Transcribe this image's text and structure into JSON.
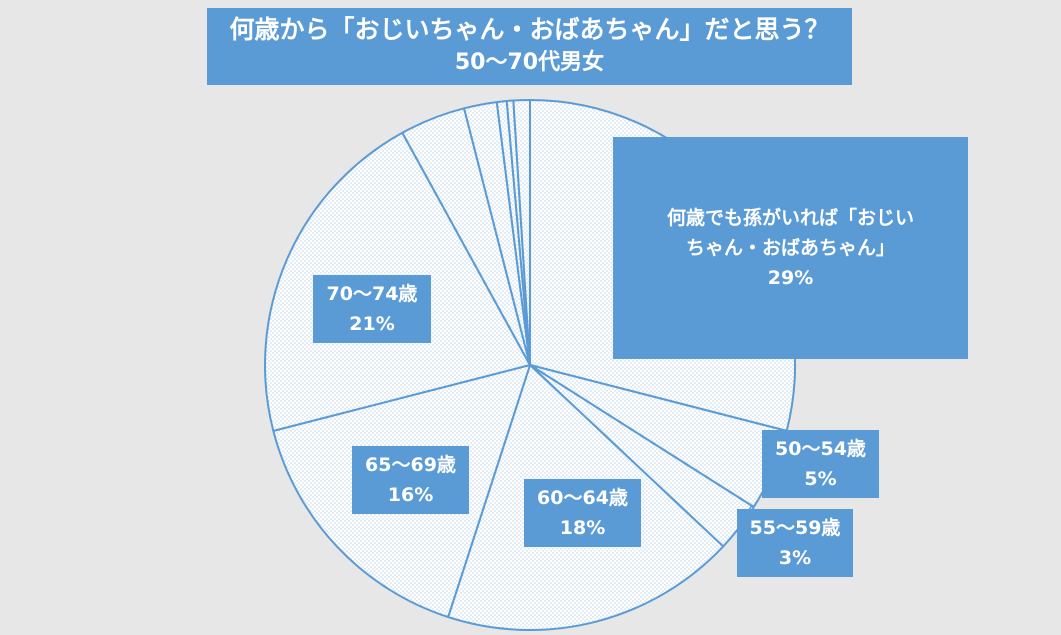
{
  "title": {
    "line1": "何歳から「おじいちゃん・おばあちゃん」だと思う？",
    "line2": "50〜70代男女"
  },
  "chart_data": {
    "type": "pie",
    "title": "何歳から「おじいちゃん・おばあちゃん」だと思う？ 50〜70代男女",
    "start": "12 o'clock, clockwise",
    "fill": "dotted pattern (pale blue on white)",
    "edge_color": "#5b9bd5",
    "slices": [
      {
        "key": "grandchild",
        "label_lines": [
          "何歳でも孫がいれば「おじい",
          "ちゃん・おばあちゃん」"
        ],
        "value": 29,
        "pct": "29%"
      },
      {
        "key": "50-54",
        "label_lines": [
          "50〜54歳"
        ],
        "value": 5,
        "pct": "5%"
      },
      {
        "key": "55-59",
        "label_lines": [
          "55〜59歳"
        ],
        "value": 3,
        "pct": "3%"
      },
      {
        "key": "60-64",
        "label_lines": [
          "60〜64歳"
        ],
        "value": 18,
        "pct": "18%"
      },
      {
        "key": "65-69",
        "label_lines": [
          "65〜69歳"
        ],
        "value": 16,
        "pct": "16%"
      },
      {
        "key": "70-74",
        "label_lines": [
          "70〜74歳"
        ],
        "value": 21,
        "pct": "21%"
      },
      {
        "key": "unlabeled-1",
        "label_lines": [],
        "value": 4,
        "pct": ""
      },
      {
        "key": "unlabeled-2",
        "label_lines": [],
        "value": 2,
        "pct": ""
      },
      {
        "key": "unlabeled-3",
        "label_lines": [],
        "value": 0.6,
        "pct": ""
      },
      {
        "key": "unlabeled-4",
        "label_lines": [],
        "value": 0.4,
        "pct": ""
      },
      {
        "key": "unlabeled-5",
        "label_lines": [],
        "value": 1,
        "pct": ""
      }
    ]
  },
  "colors": {
    "background": "#e7e7e7",
    "accent": "#5b9bd5",
    "label_text": "#ffffff",
    "dot": "#b9d2ea"
  }
}
